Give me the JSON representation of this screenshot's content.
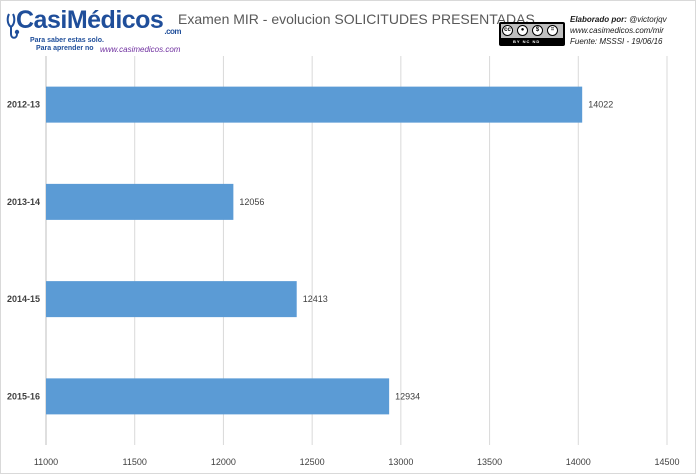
{
  "logo": {
    "name_part1": "Casi",
    "name_part2": "Médicos",
    "domain": ".com",
    "tagline_line1": "Para saber estas solo.",
    "tagline_line2": "Para aprender no",
    "url": "www.casimedicos.com"
  },
  "license": {
    "badge_text": "BY  NC  ND"
  },
  "credits": {
    "line1_label": "Elaborado por:",
    "line1_value": "@victorjqv",
    "line2": "www.casimedicos.com/mir",
    "line3": "Fuente: MSSSI - 19/06/16"
  },
  "colors": {
    "bar": "#5b9bd5",
    "grid": "#d9d9d9",
    "text": "#404040"
  },
  "chart_data": {
    "type": "bar",
    "orientation": "horizontal",
    "title": "Examen MIR - evolucion SOLICITUDES PRESENTADAS",
    "categories": [
      "2012-13",
      "2013-14",
      "2014-15",
      "2015-16"
    ],
    "values": [
      14022,
      12056,
      12413,
      12934
    ],
    "xlim": [
      11000,
      14500
    ],
    "xticks": [
      "11000",
      "11500",
      "12000",
      "12500",
      "13000",
      "13500",
      "14000",
      "14500"
    ],
    "xlabel": "",
    "ylabel": "",
    "grid": "vertical",
    "legend": "none",
    "data_labels": true
  }
}
